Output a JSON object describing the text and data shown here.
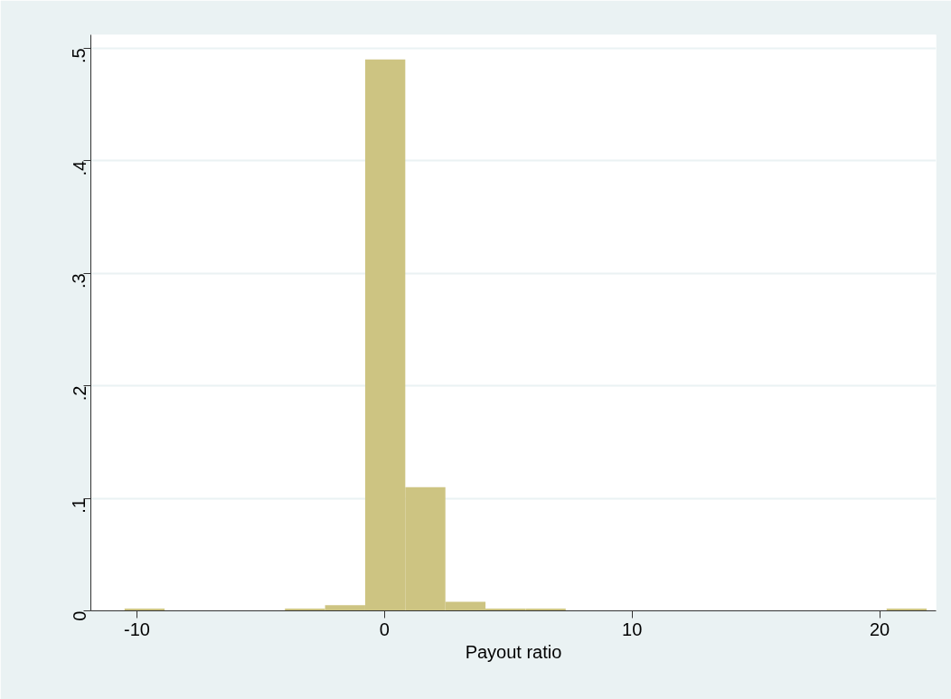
{
  "chart_data": {
    "type": "histogram",
    "xlabel": "Payout ratio",
    "bins": [
      -10.5,
      -8.88,
      -7.26,
      -5.64,
      -4.02,
      -2.4,
      -0.78,
      0.84,
      2.46,
      4.08,
      5.7,
      7.32,
      8.94,
      10.56,
      12.18,
      13.8,
      15.42,
      17.04,
      18.66,
      20.28,
      21.9
    ],
    "values": [
      0.002,
      0,
      0,
      0,
      0.002,
      0.005,
      0.49,
      0.11,
      0.008,
      0.002,
      0.002,
      0,
      0,
      0,
      0,
      0,
      0,
      0,
      0,
      0.002
    ],
    "color": "#cdc482",
    "xlim": [
      -11.86,
      22.28
    ],
    "ylim": [
      0,
      0.512
    ],
    "xticks": [
      -10,
      0,
      10,
      20
    ],
    "yticks": [
      {
        "value": 0,
        "label": "0"
      },
      {
        "value": 0.1,
        "label": ".1"
      },
      {
        "value": 0.2,
        "label": ".2"
      },
      {
        "value": 0.3,
        "label": ".3"
      },
      {
        "value": 0.4,
        "label": ".4"
      },
      {
        "value": 0.5,
        "label": ".5"
      }
    ],
    "grid": "y"
  }
}
